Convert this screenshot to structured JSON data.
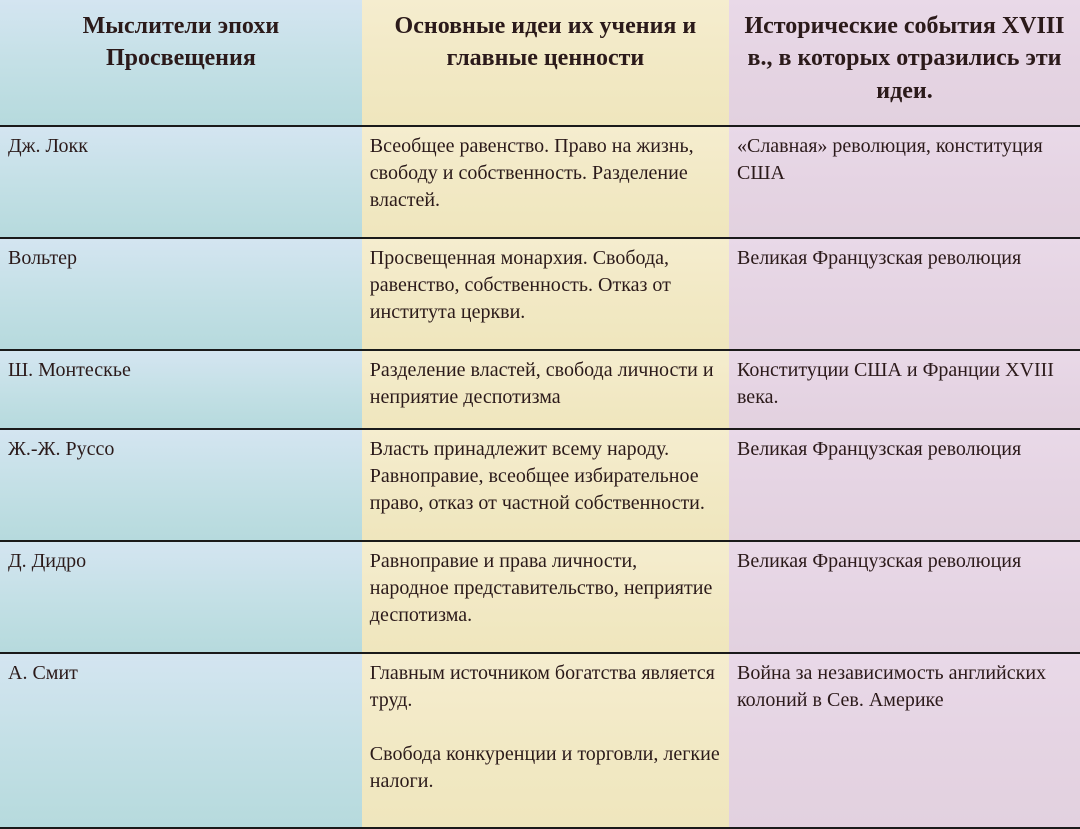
{
  "table": {
    "type": "table",
    "columns": [
      {
        "label": "Мыслители эпохи Просвещения",
        "width_pct": 33.5,
        "bg_gradient": [
          "#d4e5f1",
          "#b6dadd"
        ],
        "align": "left"
      },
      {
        "label": "Основные идеи их учения и главные ценности",
        "width_pct": 34.0,
        "bg_gradient": [
          "#f5edcf",
          "#efe6bd"
        ],
        "align": "left"
      },
      {
        "label": "Исторические события XVIII в., в которых отразились эти идеи.",
        "width_pct": 32.5,
        "bg_gradient": [
          "#e9d9e8",
          "#e2d1df"
        ],
        "align": "left"
      }
    ],
    "header_fontsize": 24,
    "header_fontweight": "bold",
    "body_fontsize": 20,
    "text_color": "#2b1a1a",
    "border_color": "#1a1a1a",
    "border_width": 2,
    "rows": [
      {
        "thinker": "Дж. Локк",
        "ideas": "Всеобщее равенство. Право на жизнь, свободу и собственность. Разделение властей.",
        "events": "«Славная» революция, конституция США"
      },
      {
        "thinker": "Вольтер",
        "ideas": "Просвещенная монархия. Свобода, равенство, собственность. Отказ от института церкви.",
        "events": "Великая Французская революция"
      },
      {
        "thinker": "Ш. Монтескье",
        "ideas": "Разделение властей, свобода личности и неприятие деспотизма",
        "events": "Конституции США и Франции XVIII века."
      },
      {
        "thinker": "Ж.-Ж. Руссо",
        "ideas": "Власть принадлежит всему народу. Равноправие, всеобщее избирательное право, отказ от частной собственности.",
        "events": "Великая Французская революция"
      },
      {
        "thinker": "Д. Дидро",
        "ideas": "Равноправие и права личности, народное представительство, неприятие деспотизма.",
        "events": "Великая Французская революция"
      },
      {
        "thinker": "А. Смит",
        "ideas": "Главным источником богатства является труд.\n\nСвобода конкуренции и торговли, легкие налоги.",
        "events": "Война за независимость английских колоний в Сев. Америке"
      }
    ]
  }
}
